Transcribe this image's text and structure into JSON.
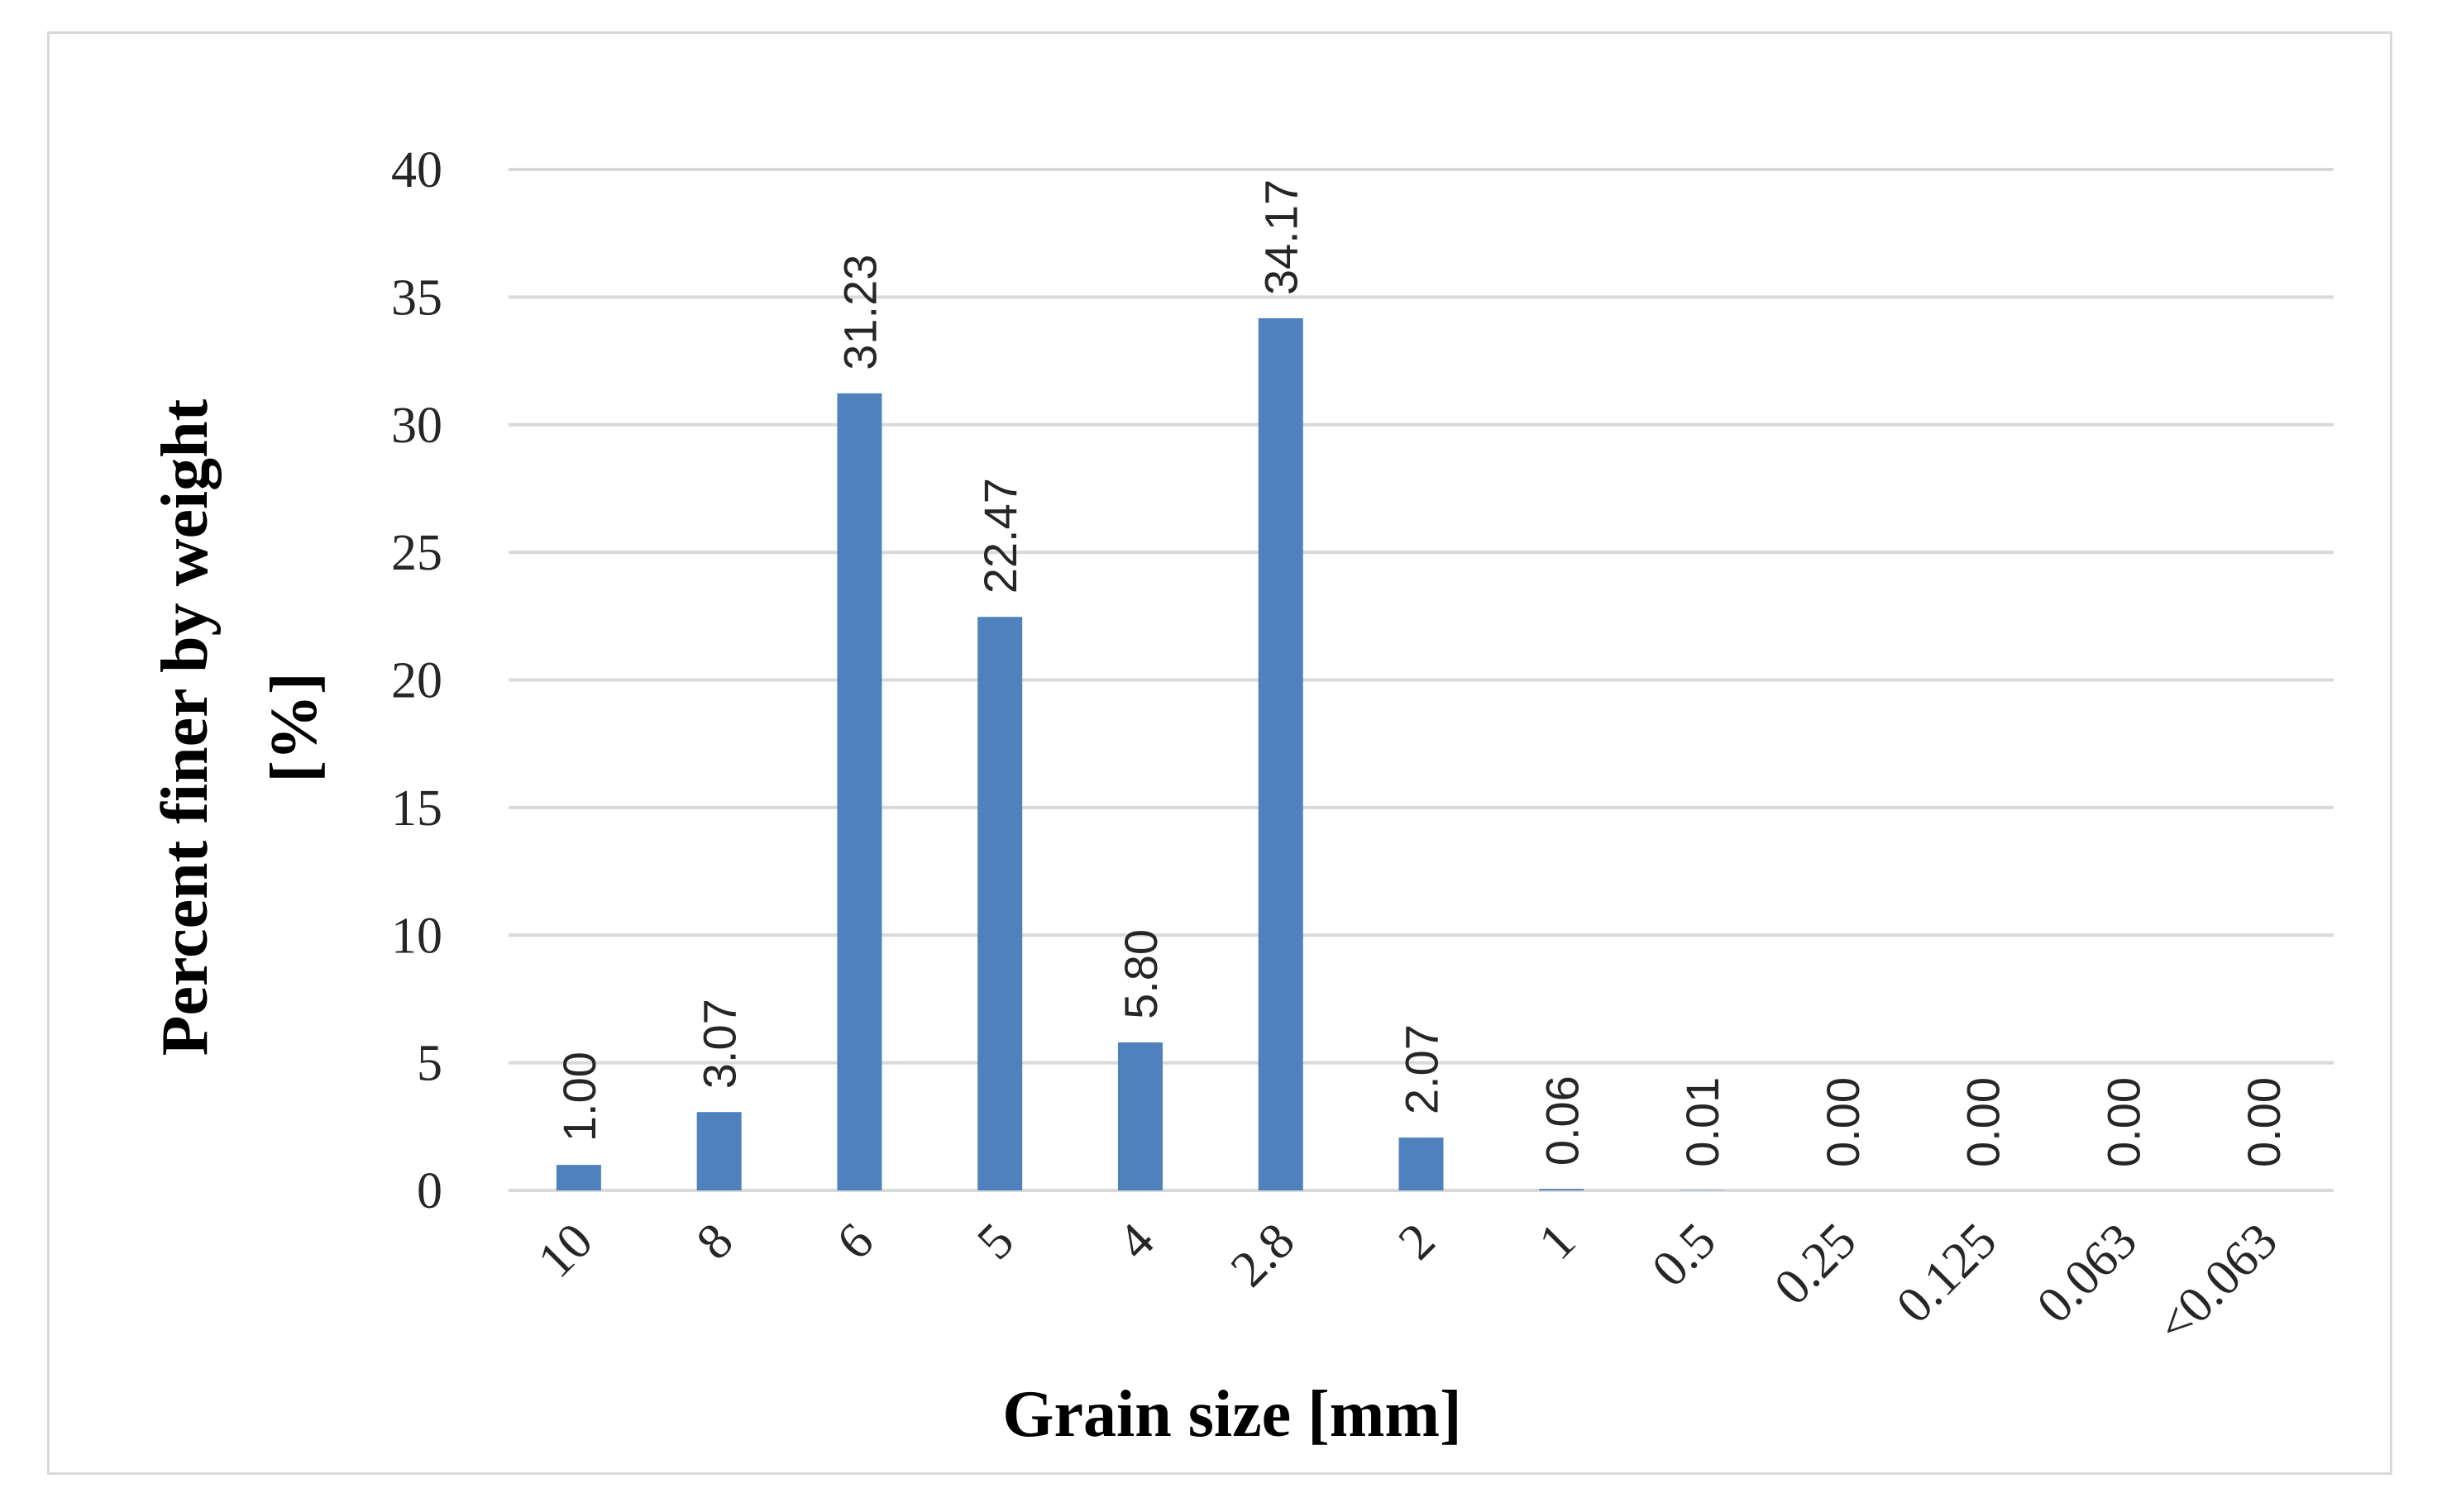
{
  "chart_data": {
    "type": "bar",
    "categories": [
      "10",
      "8",
      "6",
      "5",
      "4",
      "2.8",
      "2",
      "1",
      "0.5",
      "0.25",
      "0.125",
      "0.063",
      "<0.063"
    ],
    "values": [
      1.0,
      3.07,
      31.23,
      22.47,
      5.8,
      34.17,
      2.07,
      0.06,
      0.01,
      0.0,
      0.0,
      0.0,
      0.0
    ],
    "data_labels": [
      "1.00",
      "3.07",
      "31.23",
      "22.47",
      "5.80",
      "34.17",
      "2.07",
      "0.06",
      "0.01",
      "0.00",
      "0.00",
      "0.00",
      "0.00"
    ],
    "title": "",
    "xlabel": "Grain size [mm]",
    "ylabel_lines": [
      "Percent finer by weight",
      "[%]"
    ],
    "ylim": [
      0,
      40
    ],
    "yticks": [
      0,
      5,
      10,
      15,
      20,
      25,
      30,
      35,
      40
    ],
    "grid": true,
    "bar_color": "#4f81bd",
    "grid_color": "#d9d9d9"
  }
}
